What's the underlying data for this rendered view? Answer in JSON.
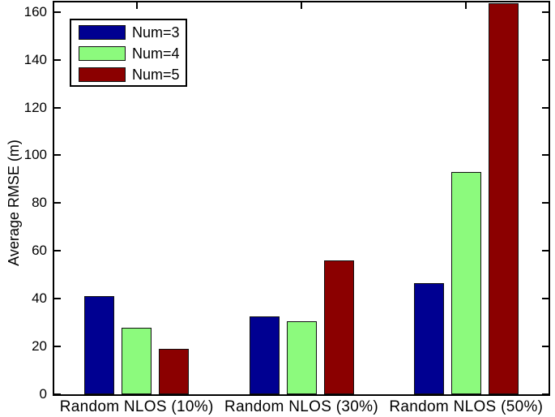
{
  "chart_data": {
    "type": "bar",
    "title": "",
    "xlabel": "",
    "ylabel": "Average RMSE (m)",
    "categories": [
      "Random NLOS (10%)",
      "Random NLOS (30%)",
      "Random NLOS (50%)"
    ],
    "series": [
      {
        "name": "Num=3",
        "color": "#000091",
        "values": [
          41,
          32.5,
          46.5
        ]
      },
      {
        "name": "Num=4",
        "color": "#8CFA7D",
        "values": [
          28,
          30.5,
          93
        ]
      },
      {
        "name": "Num=5",
        "color": "#8B0000",
        "values": [
          19,
          56,
          163.5
        ]
      }
    ],
    "ylim": [
      0,
      164
    ],
    "yticks": [
      0,
      20,
      40,
      60,
      80,
      100,
      120,
      140,
      160
    ],
    "legend": {
      "position": "top-left",
      "entries": [
        "Num=3",
        "Num=4",
        "Num=5"
      ]
    },
    "grid": false,
    "axis_color": "#000000",
    "plot_background": "#FFFFFF",
    "bar_edge_color": "#101010"
  }
}
